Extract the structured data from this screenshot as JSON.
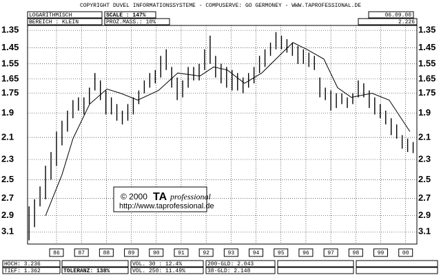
{
  "header": {
    "copyright": "COPYRIGHT  DUVEL INFORMATIONSSYSTEME - COMPUSERVE: GO GERMONEY - WWW.TAPROFESSIONAL.DE",
    "scale_type": "LOGARITHMISCH",
    "scale": "SCALE : 147%",
    "date": "06.09.00",
    "range": "BEREICH : KLEIN",
    "percent": "PROZ.MASS.: 10%",
    "last": "2.226"
  },
  "footer": {
    "high": "HOCH: 3.236",
    "low": "TIEF: 1.362",
    "tolerance": "TOLERANZ: 138%",
    "vol30": "VOL. 30 : 12.4%",
    "vol250": "VOL. 250: 11.49%",
    "gld200": "200-GLD: 2.043",
    "gld38": "38-GLD: 2.148"
  },
  "watermark": {
    "copyright": "© 2000",
    "brand": "TA",
    "brand_suffix": "professional",
    "url": "http://www.taprofessional.de"
  },
  "chart_data": {
    "type": "ohlc",
    "log_scale": true,
    "y_inverted": true,
    "grid": true,
    "color": "#000000",
    "xlim": [
      1985.34,
      2000.95
    ],
    "ylim": [
      1.323,
      3.26
    ],
    "xticks": [
      {
        "value": 1986.5,
        "label": "86"
      },
      {
        "value": 1987.5,
        "label": "87"
      },
      {
        "value": 1988.5,
        "label": "88"
      },
      {
        "value": 1989.5,
        "label": "89"
      },
      {
        "value": 1990.5,
        "label": "90"
      },
      {
        "value": 1991.5,
        "label": "91"
      },
      {
        "value": 1992.5,
        "label": "92"
      },
      {
        "value": 1993.5,
        "label": "93"
      },
      {
        "value": 1994.5,
        "label": "94"
      },
      {
        "value": 1995.5,
        "label": "95"
      },
      {
        "value": 1996.5,
        "label": "96"
      },
      {
        "value": 1997.5,
        "label": "97"
      },
      {
        "value": 1998.5,
        "label": "98"
      },
      {
        "value": 1999.5,
        "label": "99"
      },
      {
        "value": 2000.5,
        "label": "00"
      }
    ],
    "yticks": [
      1.35,
      1.45,
      1.55,
      1.65,
      1.75,
      1.9,
      2.1,
      2.3,
      2.5,
      2.7,
      2.9,
      3.1
    ],
    "x": [
      1985.4,
      1985.62,
      1985.84,
      1986.06,
      1986.28,
      1986.5,
      1986.72,
      1986.94,
      1987.16,
      1987.38,
      1987.6,
      1987.82,
      1988.04,
      1988.26,
      1988.48,
      1988.7,
      1988.92,
      1989.14,
      1989.36,
      1989.58,
      1989.8,
      1990.02,
      1990.24,
      1990.46,
      1990.68,
      1990.9,
      1991.12,
      1991.34,
      1991.56,
      1991.78,
      1992.0,
      1992.22,
      1992.44,
      1992.66,
      1992.88,
      1993.1,
      1993.32,
      1993.54,
      1993.76,
      1993.98,
      1994.2,
      1994.42,
      1994.64,
      1994.86,
      1995.08,
      1995.3,
      1995.52,
      1995.74,
      1995.96,
      1996.18,
      1996.4,
      1996.62,
      1996.84,
      1997.06,
      1997.28,
      1997.5,
      1997.72,
      1997.94,
      1998.16,
      1998.38,
      1998.6,
      1998.82,
      1999.04,
      1999.26,
      1999.48,
      1999.7,
      1999.92,
      2000.14,
      2000.36,
      2000.58,
      2000.8
    ],
    "price_min": [
      2.79,
      2.71,
      2.57,
      2.36,
      2.23,
      2.05,
      1.96,
      1.88,
      1.8,
      1.78,
      1.78,
      1.71,
      1.61,
      1.66,
      1.73,
      1.78,
      1.83,
      1.88,
      1.83,
      1.78,
      1.73,
      1.66,
      1.61,
      1.59,
      1.5,
      1.46,
      1.57,
      1.64,
      1.66,
      1.57,
      1.57,
      1.55,
      1.46,
      1.38,
      1.5,
      1.55,
      1.57,
      1.59,
      1.61,
      1.64,
      1.61,
      1.57,
      1.5,
      1.46,
      1.42,
      1.36,
      1.38,
      1.4,
      1.42,
      1.44,
      1.46,
      1.48,
      1.5,
      1.64,
      1.71,
      1.73,
      1.75,
      1.75,
      1.78,
      1.75,
      1.66,
      1.68,
      1.73,
      1.78,
      1.83,
      1.88,
      1.94,
      1.99,
      2.08,
      2.11,
      2.14
    ],
    "price_max": [
      3.21,
      3.04,
      2.79,
      2.71,
      2.5,
      2.36,
      2.17,
      2.05,
      1.94,
      1.88,
      1.91,
      1.83,
      1.73,
      1.8,
      1.91,
      1.91,
      1.96,
      1.99,
      1.96,
      1.91,
      1.83,
      1.75,
      1.71,
      1.68,
      1.64,
      1.59,
      1.71,
      1.8,
      1.78,
      1.71,
      1.66,
      1.66,
      1.59,
      1.55,
      1.64,
      1.68,
      1.71,
      1.73,
      1.73,
      1.75,
      1.71,
      1.68,
      1.61,
      1.57,
      1.5,
      1.46,
      1.46,
      1.48,
      1.5,
      1.55,
      1.55,
      1.57,
      1.59,
      1.78,
      1.8,
      1.88,
      1.86,
      1.83,
      1.86,
      1.83,
      1.78,
      1.78,
      1.86,
      1.91,
      1.94,
      1.99,
      2.08,
      2.11,
      2.2,
      2.23,
      2.24
    ],
    "moving_average": {
      "color": "#000000",
      "x": [
        1986.06,
        1986.72,
        1987.16,
        1987.83,
        1988.52,
        1989.07,
        1989.76,
        1990.59,
        1991.36,
        1992.25,
        1992.8,
        1993.35,
        1994.04,
        1994.73,
        1995.56,
        1995.98,
        1996.53,
        1997.22,
        1997.77,
        1998.32,
        1999.15,
        1999.84,
        2000.67
      ],
      "values": [
        2.9,
        2.45,
        2.11,
        1.83,
        1.72,
        1.75,
        1.8,
        1.73,
        1.61,
        1.63,
        1.57,
        1.59,
        1.68,
        1.61,
        1.48,
        1.42,
        1.46,
        1.52,
        1.71,
        1.78,
        1.75,
        1.8,
        2.05
      ]
    }
  }
}
